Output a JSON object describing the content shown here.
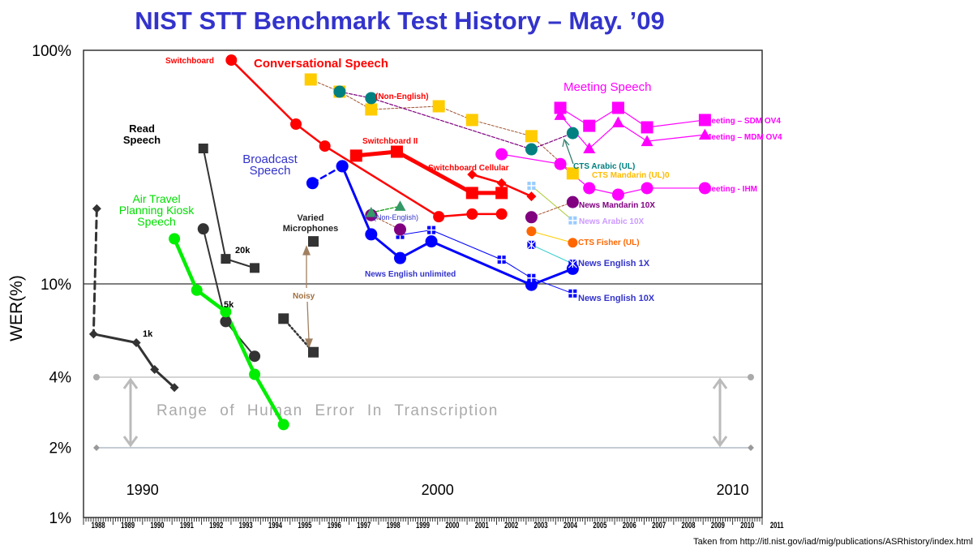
{
  "chart_data": {
    "type": "line",
    "title": "NIST STT Benchmark Test History – May. ’09",
    "xlabel": "",
    "ylabel": "WER(%)",
    "yscale": "log",
    "ylim": [
      1,
      100
    ],
    "xlim": [
      1988,
      2011
    ],
    "y_ticks": [
      {
        "v": 100,
        "label": "100%"
      },
      {
        "v": 10,
        "label": "10%"
      },
      {
        "v": 4,
        "label": "4%"
      },
      {
        "v": 2,
        "label": "2%"
      },
      {
        "v": 1,
        "label": "1%"
      }
    ],
    "x_tick_labels": [
      "1988",
      "1989",
      "1990",
      "1991",
      "1992",
      "1993",
      "1994",
      "1995",
      "1996",
      "1997",
      "1998",
      "1999",
      "2000",
      "2001",
      "2002",
      "2003",
      "2004",
      "2005",
      "2006",
      "2007",
      "2008",
      "2009",
      "2010",
      "2011"
    ],
    "decade_labels": [
      "1990",
      "2000",
      "2010"
    ],
    "human_error_range": {
      "low": 2,
      "high": 4,
      "label": "Range of Human Error In Transcription"
    },
    "series": [
      {
        "id": "read_1k",
        "name": "Read Speech 1k",
        "color": "#333333",
        "marker": "diamond",
        "points": [
          [
            1988.45,
            21
          ],
          [
            1988.34,
            6.1
          ],
          [
            1989.79,
            5.6
          ],
          [
            1990.41,
            4.3
          ],
          [
            1991.08,
            3.6
          ]
        ]
      },
      {
        "id": "read_20k",
        "name": "Read Speech 20k",
        "color": "#333333",
        "marker": "square",
        "points": [
          [
            1992.06,
            38
          ],
          [
            1992.82,
            12.8
          ],
          [
            1993.8,
            11.7
          ]
        ]
      },
      {
        "id": "read_5k",
        "name": "Read Speech 5k",
        "color": "#333333",
        "marker": "circle",
        "points": [
          [
            1992.06,
            17.2
          ],
          [
            1992.82,
            6.9
          ],
          [
            1993.8,
            4.9
          ]
        ]
      },
      {
        "id": "air_travel",
        "name": "Air Travel Planning Kiosk Speech",
        "color": "#00ee00",
        "marker": "circle",
        "points": [
          [
            1991.08,
            15.6
          ],
          [
            1991.84,
            9.4
          ],
          [
            1992.82,
            7.6
          ],
          [
            1993.8,
            4.1
          ],
          [
            1994.78,
            2.5
          ]
        ]
      },
      {
        "id": "varied_mic",
        "name": "Varied Microphones",
        "color": "#333333",
        "marker": "square",
        "points": [
          [
            1995.79,
            15.2
          ]
        ]
      },
      {
        "id": "noisy",
        "name": "Noisy",
        "color": "#333333",
        "marker": "square",
        "points": [
          [
            1994.78,
            7.1
          ],
          [
            1995.79,
            5.1
          ]
        ]
      },
      {
        "id": "switchboard",
        "name": "Switchboard",
        "color": "#ff0000",
        "marker": "circle",
        "points": [
          [
            1993.01,
            90.8
          ],
          [
            1995.2,
            48.3
          ],
          [
            1996.18,
            38.9
          ],
          [
            2000.04,
            19.4
          ],
          [
            2001.17,
            19.9
          ],
          [
            2002.17,
            19.9
          ]
        ]
      },
      {
        "id": "switchboard_ii",
        "name": "Switchboard II",
        "color": "#ff0000",
        "marker": "square",
        "points": [
          [
            1997.24,
            35.4
          ],
          [
            1998.62,
            36.8
          ],
          [
            2001.17,
            24.5
          ],
          [
            2002.17,
            24.5
          ]
        ]
      },
      {
        "id": "switchboard_cellular",
        "name": "Switchboard Cellular",
        "color": "#ff0000",
        "marker": "diamond",
        "points": [
          [
            2001.17,
            29.4
          ],
          [
            2002.17,
            27.0
          ],
          [
            2003.18,
            23.7
          ]
        ]
      },
      {
        "id": "broadcast_early",
        "name": "Broadcast Speech",
        "color": "#0000ff",
        "marker": "circle",
        "points": [
          [
            1995.76,
            27.0
          ],
          [
            1996.77,
            31.9
          ]
        ]
      },
      {
        "id": "news_english_unlimited",
        "name": "News English unlimited",
        "color": "#0000ff",
        "marker": "circle",
        "points": [
          [
            1996.77,
            31.9
          ],
          [
            1997.75,
            16.3
          ],
          [
            1998.73,
            12.9
          ],
          [
            1999.79,
            15.2
          ],
          [
            2003.18,
            9.9
          ],
          [
            2004.58,
            11.6
          ]
        ]
      },
      {
        "id": "news_english_10x",
        "name": "News English 10X",
        "color": "#0000ff",
        "marker": "gridsquare",
        "points": [
          [
            1998.73,
            16.2
          ],
          [
            1999.79,
            17.0
          ],
          [
            2002.17,
            12.7
          ],
          [
            2003.18,
            10.6
          ],
          [
            2004.58,
            9.1
          ]
        ]
      },
      {
        "id": "news_english_1x",
        "name": "News English 1X",
        "color": "#0000ff",
        "marker": "xsquare",
        "line_color": "#33cccc",
        "points": [
          [
            2003.18,
            14.7
          ],
          [
            2004.58,
            12.2
          ]
        ]
      },
      {
        "id": "news_arabic_10x",
        "name": "News Arabic 10X",
        "color": "#99ccff",
        "marker": "gridsquare",
        "line_color": "#aacc33",
        "points": [
          [
            2003.18,
            26.3
          ],
          [
            2004.58,
            18.7
          ]
        ]
      },
      {
        "id": "cts_fisher",
        "name": "CTS Fisher (UL)",
        "color": "#ff6600",
        "marker": "circle",
        "line_color": "#ffcc00",
        "points": [
          [
            2003.18,
            16.8
          ],
          [
            2004.58,
            15.0
          ]
        ]
      },
      {
        "id": "bn_non_english",
        "name": "(Non-English)",
        "color": "#800080",
        "marker": "circle",
        "line_color": "#a0522d",
        "points": [
          [
            1997.75,
            19.7
          ],
          [
            1998.73,
            17.1
          ]
        ]
      },
      {
        "id": "news_mandarin_10x",
        "name": "News Mandarin 10X",
        "color": "#800080",
        "marker": "circle",
        "line_color": "#a0522d",
        "points": [
          [
            2003.18,
            19.3
          ],
          [
            2004.58,
            22.4
          ]
        ]
      },
      {
        "id": "bn_non_english_tri",
        "name": "(Non-English) triangles",
        "color": "#339966",
        "marker": "triangle",
        "line_color": "#009900",
        "points": [
          [
            1997.75,
            20.2
          ],
          [
            1998.73,
            21.5
          ]
        ]
      },
      {
        "id": "cts_mandarin",
        "name": "CTS Mandarin (UL)",
        "color": "#ffcc00",
        "marker": "square",
        "line_color": "#a0522d",
        "points": [
          [
            1995.7,
            75
          ],
          [
            1996.68,
            66.5
          ],
          [
            1997.75,
            55.8
          ],
          [
            2000.04,
            57.6
          ],
          [
            2001.17,
            50.3
          ],
          [
            2003.18,
            42.9
          ],
          [
            2004.58,
            29.7
          ]
        ]
      },
      {
        "id": "cts_arabic",
        "name": "CTS Arabic (UL)",
        "color": "#008080",
        "marker": "circle",
        "line_color": "#800080",
        "points": [
          [
            1996.68,
            66.5
          ],
          [
            1997.75,
            62.4
          ],
          [
            2003.18,
            37.7
          ],
          [
            2004.58,
            44.2
          ]
        ]
      },
      {
        "id": "meeting_ihm",
        "name": "Meeting - IHM",
        "color": "#ff00ff",
        "marker": "circle",
        "points": [
          [
            2002.17,
            35.9
          ],
          [
            2004.16,
            32.6
          ],
          [
            2005.14,
            25.7
          ],
          [
            2006.12,
            24.1
          ],
          [
            2007.1,
            25.7
          ],
          [
            2009.06,
            25.7
          ]
        ]
      },
      {
        "id": "meeting_sdm",
        "name": "Meeting – SDM OV4",
        "color": "#ff00ff",
        "marker": "square",
        "points": [
          [
            2004.16,
            56.7
          ],
          [
            2005.14,
            47.5
          ],
          [
            2006.12,
            56.7
          ],
          [
            2007.1,
            46.8
          ],
          [
            2009.06,
            50.3
          ]
        ]
      },
      {
        "id": "meeting_mdm",
        "name": "Meeting – MDM OV4",
        "color": "#ff00ff",
        "marker": "triangle",
        "points": [
          [
            2004.16,
            52.8
          ],
          [
            2005.14,
            38.0
          ],
          [
            2006.12,
            49.1
          ],
          [
            2007.1,
            40.8
          ],
          [
            2009.06,
            43.5
          ]
        ]
      }
    ],
    "annotations": {
      "switchboard": "Switchboard",
      "conversational": "Conversational Speech",
      "non_english_top": "(Non-English)",
      "meeting_speech": "Meeting Speech",
      "read_speech_1": "Read",
      "read_speech_2": "Speech",
      "broadcast_1": "Broadcast",
      "broadcast_2": "Speech",
      "air_1": "Air Travel",
      "air_2": "Planning Kiosk",
      "air_3": "Speech",
      "varied_1": "Varied",
      "varied_2": "Microphones",
      "k20": "20k",
      "k5": "5k",
      "k1": "1k",
      "noisy": "Noisy",
      "switchboard_ii": "Switchboard II",
      "switchboard_cellular": "Switchboard Cellular",
      "non_english_mid": "(Non-English)",
      "news_english_unlimited": "News English unlimited",
      "cts_arabic": "CTS Arabic (UL)",
      "cts_mandarin": "CTS Mandarin  (UL)0",
      "meeting_sdm": "Meeting – SDM OV4",
      "meeting_mdm": "Meeting – MDM OV4",
      "meeting_ihm": "Meeting - IHM",
      "news_mandarin_10x": "News Mandarin 10X",
      "news_arabic_10x": "News Arabic 10X",
      "cts_fisher": "CTS Fisher (UL)",
      "news_english_1x": "News English  1X",
      "news_english_10x": "News English  10X"
    },
    "source_note": "Taken from http://itl.nist.gov/iad/mig/publications/ASRhistory/index.html"
  }
}
